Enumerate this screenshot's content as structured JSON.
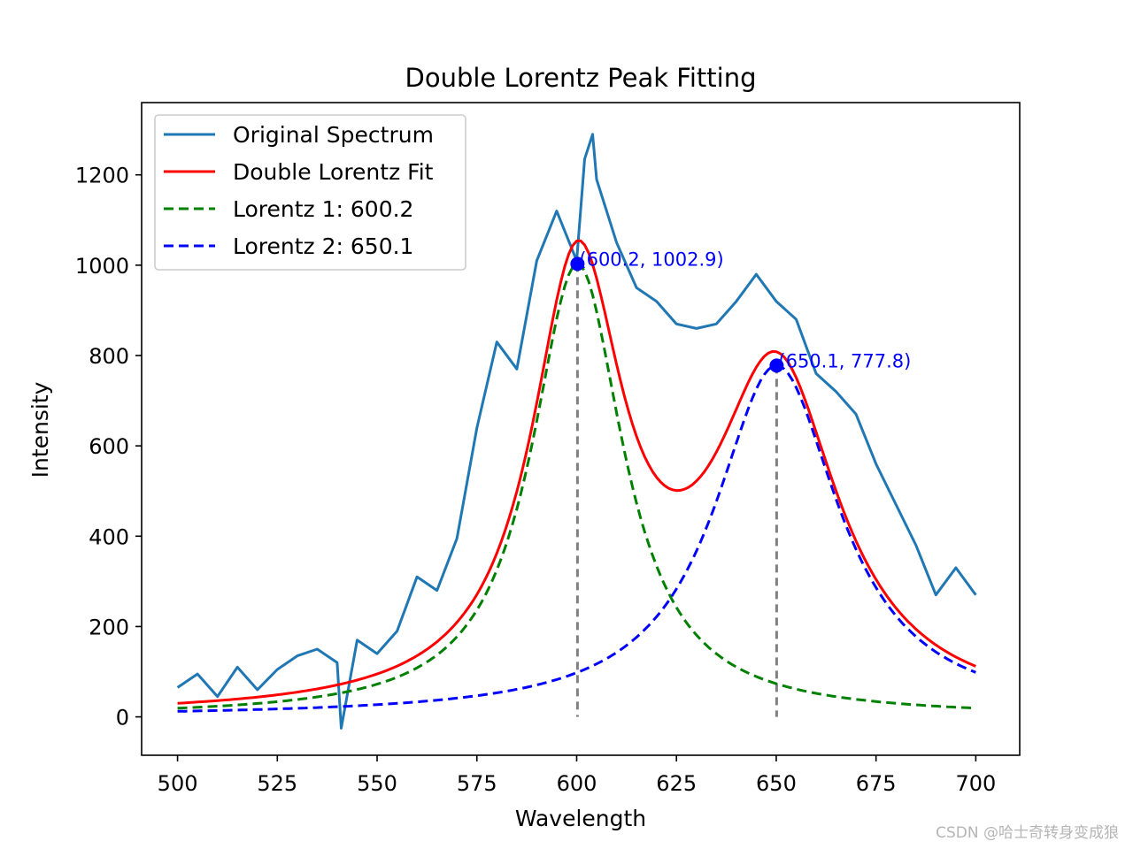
{
  "chart_data": {
    "type": "line",
    "title": "Double Lorentz Peak Fitting",
    "xlabel": "Wavelength",
    "ylabel": "Intensity",
    "xlim": [
      491,
      711
    ],
    "ylim": [
      -85,
      1360
    ],
    "x_ticks": [
      500,
      525,
      550,
      575,
      600,
      625,
      650,
      675,
      700
    ],
    "y_ticks": [
      0,
      200,
      400,
      600,
      800,
      1000,
      1200
    ],
    "x_tick_labels": [
      "500",
      "525",
      "550",
      "575",
      "600",
      "625",
      "650",
      "675",
      "700"
    ],
    "y_tick_labels": [
      "0",
      "200",
      "400",
      "600",
      "800",
      "1000",
      "1200"
    ],
    "legend_position": "top-left",
    "series": [
      {
        "name": "Original Spectrum",
        "style": "solid",
        "color": "#1f77b4",
        "x": [
          500,
          505,
          510,
          515,
          520,
          525,
          530,
          535,
          540,
          541,
          545,
          550,
          555,
          560,
          565,
          570,
          575,
          580,
          585,
          590,
          595,
          600,
          602,
          604,
          605,
          610,
          615,
          620,
          625,
          630,
          635,
          640,
          645,
          650,
          655,
          660,
          665,
          670,
          675,
          680,
          685,
          690,
          695,
          700
        ],
        "y": [
          65,
          95,
          45,
          110,
          60,
          105,
          135,
          150,
          120,
          -25,
          170,
          140,
          190,
          310,
          280,
          395,
          640,
          830,
          770,
          1010,
          1120,
          1010,
          1235,
          1290,
          1190,
          1050,
          950,
          920,
          870,
          860,
          870,
          920,
          980,
          920,
          880,
          760,
          720,
          670,
          560,
          470,
          380,
          270,
          330,
          270
        ]
      },
      {
        "name": "Double Lorentz Fit",
        "style": "solid",
        "color": "#ff0000",
        "function": "double_lorentz",
        "params": {
          "A1": 960.9,
          "x1": 600.2,
          "gamma1": 14,
          "A2": 738.2,
          "x2": 650.1,
          "gamma2": 19,
          "baseline": 0
        }
      },
      {
        "name": "Lorentz 1: 600.2",
        "style": "dashed",
        "color": "#008000",
        "function": "lorentz",
        "params": {
          "A": 1002.9,
          "x0": 600.2,
          "gamma": 14
        }
      },
      {
        "name": "Lorentz 2: 650.1",
        "style": "dashed",
        "color": "#0000ff",
        "function": "lorentz",
        "params": {
          "A": 777.8,
          "x0": 650.1,
          "gamma": 19
        }
      }
    ],
    "peaks": [
      {
        "x": 600.2,
        "y": 1002.9,
        "label": "(600.2, 1002.9)"
      },
      {
        "x": 650.1,
        "y": 777.8,
        "label": "(650.1, 777.8)"
      }
    ],
    "peak_vline_color": "#808080",
    "annotation_color": "#0000ff"
  },
  "watermark": "CSDN @哈士奇转身变成狼"
}
